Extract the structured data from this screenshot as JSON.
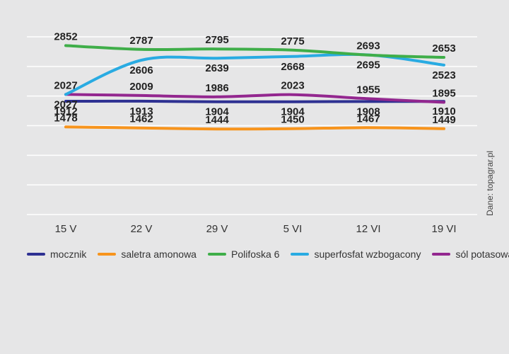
{
  "source_label": "Dane: topagrar.pl",
  "chart_data": {
    "type": "line",
    "categories": [
      "15 V",
      "22 V",
      "29 V",
      "5 VI",
      "12 VI",
      "19 VI"
    ],
    "ylim": [
      0,
      3000
    ],
    "grid": true,
    "legend_position": "bottom",
    "series": [
      {
        "name": "mocznik",
        "color": "#2e3192",
        "values": [
          1912,
          1913,
          1904,
          1904,
          1908,
          1910
        ],
        "label_side": "below"
      },
      {
        "name": "saletra amonowa",
        "color": "#f7941d",
        "values": [
          1478,
          1462,
          1444,
          1450,
          1467,
          1449
        ],
        "label_side": "above"
      },
      {
        "name": "Polifoska 6",
        "color": "#3fae49",
        "values": [
          2852,
          2787,
          2795,
          2775,
          2693,
          2653
        ],
        "label_side": "above"
      },
      {
        "name": "superfosfat wzbogacony",
        "color": "#29abe2",
        "values": [
          2027,
          2606,
          2639,
          2668,
          2695,
          2523
        ],
        "label_side": "below"
      },
      {
        "name": "sól potasowa",
        "color": "#93278f",
        "values": [
          2027,
          2009,
          1986,
          2023,
          1955,
          1895
        ],
        "label_side": "above"
      }
    ]
  }
}
